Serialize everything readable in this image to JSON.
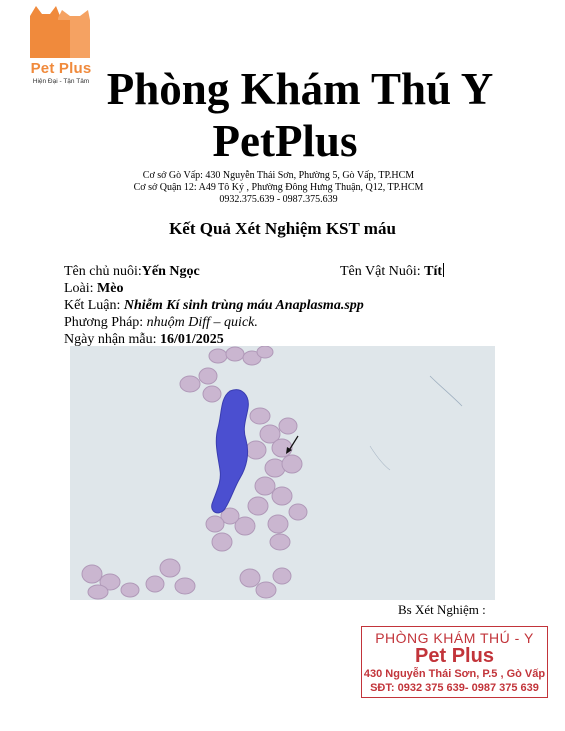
{
  "logo": {
    "name": "Pet Plus",
    "tagline": "Hiện Đại - Tận Tâm",
    "color": "#f08a3c"
  },
  "header": {
    "title": "Phòng Khám Thú Y",
    "brand": "PetPlus",
    "address_1": "Cơ sở Gò Vấp: 430 Nguyễn Thái Sơn, Phường 5, Gò Vấp, TP.HCM",
    "address_2": "Cơ sở Quận 12: A49 Tô Ký , Phường Đông Hưng Thuận, Q12, TP.HCM",
    "phone": "0932.375.639 - 0987.375.639"
  },
  "report": {
    "title": "Kết Quả Xét Nghiệm KST máu",
    "owner_label": "Tên chủ nuôi:",
    "owner_value": "Yến Ngọc",
    "pet_label": "Tên Vật Nuôi: ",
    "pet_value": "Tít",
    "species_label": "Loài: ",
    "species_value": "Mèo",
    "conclusion_label": "Kết Luận: ",
    "conclusion_value": "Nhiễm Kí sinh trùng máu Anaplasma.spp",
    "method_label": "Phương Pháp: ",
    "method_value": "nhuộm Diff – quick.",
    "date_label": "Ngày nhận mẫu: ",
    "date_value": "16/01/2025"
  },
  "signature": {
    "label": "Bs Xét Nghiệm :"
  },
  "stamp": {
    "line1": "PHÒNG KHÁM THÚ - Y",
    "line2": "Pet Plus",
    "line3": "430 Nguyễn Thái Sơn, P.5 , Gò Vấp",
    "line4": "SĐT: 0932 375 639- 0987 375 639",
    "color": "#c2343a"
  },
  "micrograph": {
    "background": "#dfe6ea",
    "rbc_color": "#c9b4cf",
    "nucleus_color": "#4b4fd0"
  }
}
